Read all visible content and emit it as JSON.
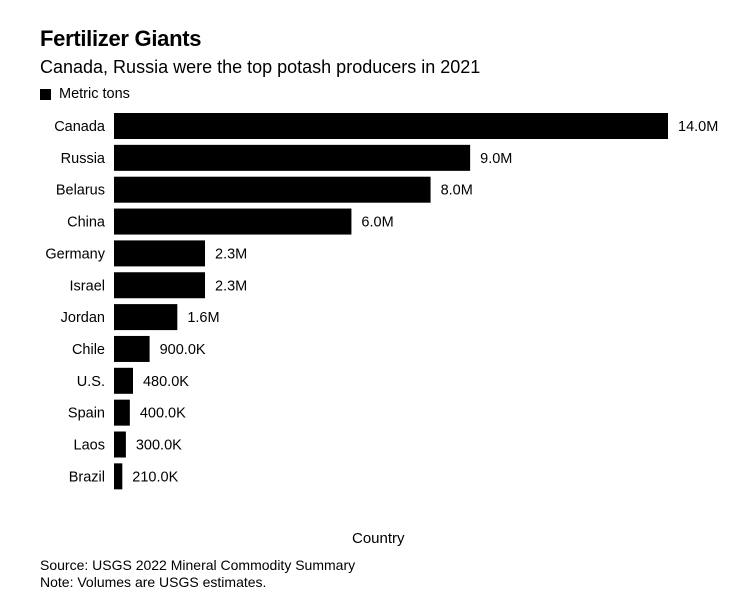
{
  "chart_data": {
    "type": "bar",
    "orientation": "horizontal",
    "title": "Fertilizer Giants",
    "subtitle": "Canada, Russia were the top potash producers in 2021",
    "legend": "Metric tons",
    "xlabel": "Country",
    "ylabel": "",
    "categories": [
      "Canada",
      "Russia",
      "Belarus",
      "China",
      "Germany",
      "Israel",
      "Jordan",
      "Chile",
      "U.S.",
      "Spain",
      "Laos",
      "Brazil"
    ],
    "values": [
      14000000,
      9000000,
      8000000,
      6000000,
      2300000,
      2300000,
      1600000,
      900000,
      480000,
      400000,
      300000,
      210000
    ],
    "labels": [
      "14.0M",
      "9.0M",
      "8.0M",
      "6.0M",
      "2.3M",
      "2.3M",
      "1.6M",
      "900.0K",
      "480.0K",
      "400.0K",
      "300.0K",
      "210.0K"
    ],
    "xlim": [
      0,
      14000000
    ],
    "bar_color": "#000000"
  },
  "footer": {
    "source": "Source: USGS 2022 Mineral Commodity Summary",
    "note": "Note: Volumes are USGS estimates."
  }
}
